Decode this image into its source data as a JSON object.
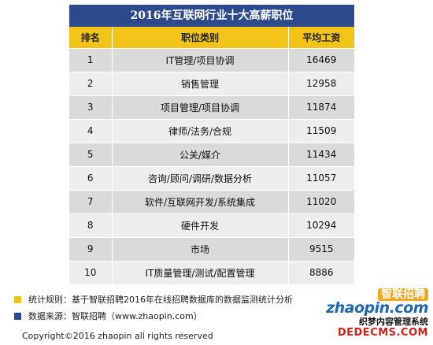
{
  "title": "2016年互联网行业十大高薪职位",
  "headers": {
    "rank": "排名",
    "category": "职位类别",
    "salary": "平均工资"
  },
  "rows": [
    {
      "rank": "1",
      "category": "IT管理/项目协调",
      "salary": "16469"
    },
    {
      "rank": "2",
      "category": "销售管理",
      "salary": "12958"
    },
    {
      "rank": "3",
      "category": "项目管理/项目协调",
      "salary": "11874"
    },
    {
      "rank": "4",
      "category": "律师/法务/合规",
      "salary": "11509"
    },
    {
      "rank": "5",
      "category": "公关/媒介",
      "salary": "11434"
    },
    {
      "rank": "6",
      "category": "咨询/顾问/调研/数据分析",
      "salary": "11057"
    },
    {
      "rank": "7",
      "category": "软件/互联网开发/系统集成",
      "salary": "11020"
    },
    {
      "rank": "8",
      "category": "硬件开发",
      "salary": "10294"
    },
    {
      "rank": "9",
      "category": "市场",
      "salary": "9515"
    },
    {
      "rank": "10",
      "category": "IT质量管理/测试/配置管理",
      "salary": "8886"
    }
  ],
  "notes": {
    "rule": "统计规则：基于智联招聘2016年在线招聘数据库的数据监测统计分析",
    "source": "数据来源：智联招聘（www.zhaopin.com）"
  },
  "logo": {
    "cn": "智联招聘",
    "en": "zhaopin.com"
  },
  "copyright": "Copyright©2016 zhaopin all rights reserved",
  "watermark": {
    "line1": "织梦内容管理系统",
    "line2": "DEDECMS.COM"
  },
  "colors": {
    "title_bg": "#2f4a8c",
    "header_bg": "#f2c417",
    "row_odd": "#dadada",
    "row_even": "#ededed",
    "logo_blue": "#1d67b8"
  }
}
